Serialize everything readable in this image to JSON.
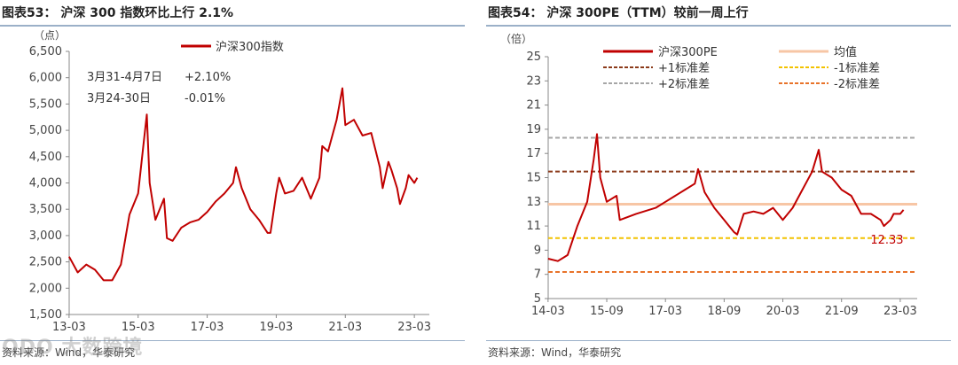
{
  "left": {
    "title": "图表53：  沪深 300 指数环比上行 2.1%",
    "source": "资料来源：Wind，华泰研究",
    "watermark": "ODO 大数跨境",
    "unit_label": "（点）",
    "annotations": [
      {
        "period": "3月31-4月7日",
        "value": "+2.10%"
      },
      {
        "period": "3月24-30日",
        "value": "-0.01%"
      }
    ]
  },
  "right": {
    "title": "图表54：  沪深 300PE（TTM）较前一周上行",
    "source": "资料来源：Wind，华泰研究",
    "unit_label": "（倍）",
    "end_label": "12.33"
  },
  "chart_data": [
    {
      "type": "line",
      "title": "沪深 300 指数环比上行 2.1%",
      "xlabel": "",
      "ylabel": "（点）",
      "ylim": [
        1500,
        6500
      ],
      "yticks": [
        "1,500",
        "2,000",
        "2,500",
        "3,000",
        "3,500",
        "4,000",
        "4,500",
        "5,000",
        "5,500",
        "6,000",
        "6,500"
      ],
      "xticks": [
        "13-03",
        "15-03",
        "17-03",
        "19-03",
        "21-03",
        "23-03"
      ],
      "legend": "top-center",
      "grid": false,
      "series": [
        {
          "name": "沪深300指数",
          "color": "#c00000",
          "x": [
            "2013-03",
            "2013-06",
            "2013-09",
            "2013-12",
            "2014-03",
            "2014-06",
            "2014-09",
            "2014-12",
            "2015-03",
            "2015-05",
            "2015-06",
            "2015-07",
            "2015-09",
            "2015-12",
            "2016-01",
            "2016-03",
            "2016-06",
            "2016-09",
            "2016-12",
            "2017-03",
            "2017-06",
            "2017-09",
            "2017-12",
            "2018-01",
            "2018-03",
            "2018-06",
            "2018-09",
            "2018-12",
            "2019-01",
            "2019-03",
            "2019-04",
            "2019-06",
            "2019-09",
            "2019-12",
            "2020-03",
            "2020-06",
            "2020-07",
            "2020-09",
            "2020-12",
            "2021-02",
            "2021-03",
            "2021-06",
            "2021-09",
            "2021-12",
            "2022-03",
            "2022-04",
            "2022-06",
            "2022-07",
            "2022-09",
            "2022-10",
            "2022-12",
            "2023-01",
            "2023-03",
            "2023-04"
          ],
          "values": [
            2600,
            2300,
            2450,
            2350,
            2150,
            2150,
            2450,
            3400,
            3800,
            4800,
            5300,
            4000,
            3300,
            3700,
            2950,
            2900,
            3150,
            3250,
            3300,
            3450,
            3650,
            3800,
            4000,
            4300,
            3900,
            3500,
            3300,
            3050,
            3050,
            3800,
            4100,
            3800,
            3850,
            4100,
            3700,
            4100,
            4700,
            4600,
            5200,
            5800,
            5100,
            5200,
            4900,
            4950,
            4300,
            3900,
            4400,
            4250,
            3900,
            3600,
            3900,
            4150,
            4000,
            4100
          ]
        }
      ],
      "text_annotations": [
        {
          "text": "3月31-4月7日",
          "value": "+2.10%"
        },
        {
          "text": "3月24-30日",
          "value": "-0.01%"
        }
      ]
    },
    {
      "type": "line",
      "title": "沪深 300PE（TTM）较前一周上行",
      "xlabel": "",
      "ylabel": "（倍）",
      "ylim": [
        5,
        25
      ],
      "yticks": [
        "5",
        "7",
        "9",
        "11",
        "13",
        "15",
        "17",
        "19",
        "21",
        "23",
        "25"
      ],
      "xticks": [
        "14-03",
        "15-09",
        "17-03",
        "18-09",
        "20-03",
        "21-09",
        "23-03"
      ],
      "legend": "top",
      "grid": false,
      "reference_lines": [
        {
          "name": "均值",
          "value": 12.8,
          "color": "#f7c6a5",
          "style": "solid"
        },
        {
          "name": "+1标准差",
          "value": 15.5,
          "color": "#8b3a1a",
          "style": "dashed"
        },
        {
          "name": "-1标准差",
          "value": 10.0,
          "color": "#f2c200",
          "style": "dashed"
        },
        {
          "name": "+2标准差",
          "value": 18.3,
          "color": "#a6a6a6",
          "style": "dashed"
        },
        {
          "name": "-2标准差",
          "value": 7.2,
          "color": "#e8732a",
          "style": "dashed"
        }
      ],
      "series": [
        {
          "name": "沪深300PE",
          "color": "#c00000",
          "x": [
            "2014-03",
            "2014-06",
            "2014-09",
            "2014-12",
            "2015-03",
            "2015-05",
            "2015-06",
            "2015-07",
            "2015-09",
            "2015-12",
            "2016-01",
            "2016-06",
            "2016-12",
            "2017-03",
            "2017-06",
            "2017-09",
            "2017-12",
            "2018-01",
            "2018-03",
            "2018-06",
            "2018-09",
            "2018-12",
            "2019-01",
            "2019-03",
            "2019-06",
            "2019-09",
            "2019-12",
            "2020-03",
            "2020-06",
            "2020-09",
            "2020-12",
            "2021-02",
            "2021-03",
            "2021-06",
            "2021-09",
            "2021-12",
            "2022-03",
            "2022-06",
            "2022-09",
            "2022-10",
            "2022-12",
            "2023-01",
            "2023-03",
            "2023-04"
          ],
          "values": [
            8.3,
            8.1,
            8.6,
            11.0,
            13.0,
            16.5,
            18.6,
            15.0,
            13.0,
            13.5,
            11.5,
            12.0,
            12.5,
            13.0,
            13.5,
            14.0,
            14.5,
            15.7,
            13.8,
            12.5,
            11.5,
            10.5,
            10.3,
            12.0,
            12.2,
            12.0,
            12.5,
            11.5,
            12.5,
            14.0,
            15.5,
            17.3,
            15.5,
            15.0,
            14.0,
            13.5,
            12.0,
            12.0,
            11.5,
            11.0,
            11.5,
            12.0,
            12.0,
            12.33
          ]
        }
      ]
    }
  ]
}
